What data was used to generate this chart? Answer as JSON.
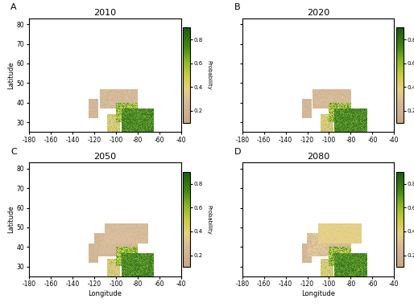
{
  "titles": [
    "2010",
    "2020",
    "2050",
    "2080"
  ],
  "panel_labels": [
    "A",
    "B",
    "C",
    "D"
  ],
  "lon_min": -180,
  "lon_max": -40,
  "lat_min": 25,
  "lat_max": 83,
  "lon_ticks": [
    -180,
    -160,
    -140,
    -120,
    -100,
    -80,
    -60,
    -40
  ],
  "lat_ticks": [
    30,
    40,
    50,
    60,
    70,
    80
  ],
  "xlabel": "Longitude",
  "ylabel": "Latitude",
  "colorbar_label": "Probability",
  "cbar_ticks": [
    0.2,
    0.4,
    0.6,
    0.8
  ],
  "vmin": 0.1,
  "vmax": 0.9,
  "land_color": "#e8e8e8",
  "ocean_color": "#ffffff",
  "border_color": "#aaaaaa",
  "fig_background": "#ffffff",
  "cmap_colors": [
    [
      0.0,
      "#c8a882"
    ],
    [
      0.2,
      "#d4b896"
    ],
    [
      0.35,
      "#e8d080"
    ],
    [
      0.5,
      "#c8cc40"
    ],
    [
      0.65,
      "#88b820"
    ],
    [
      0.8,
      "#40880e"
    ],
    [
      1.0,
      "#1a5c0a"
    ]
  ]
}
